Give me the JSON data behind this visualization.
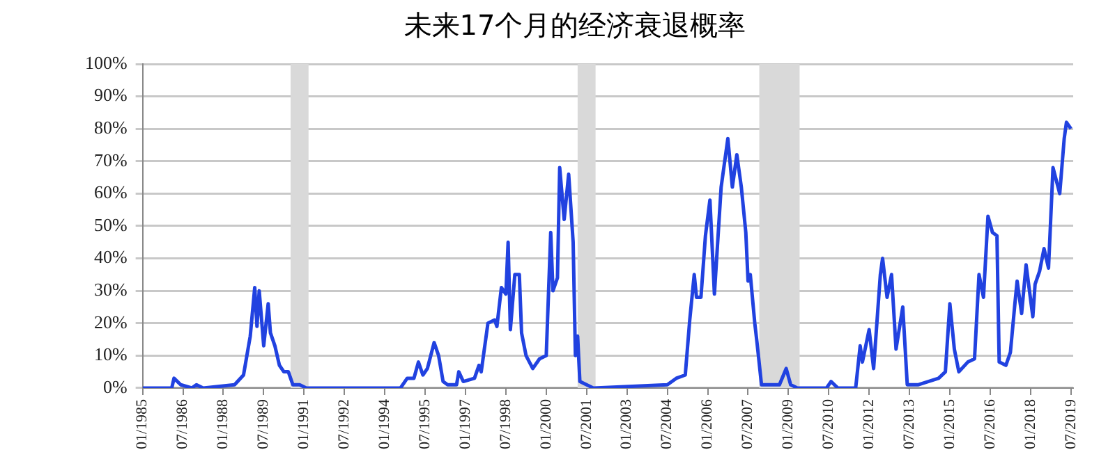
{
  "chart_data": {
    "type": "line",
    "title": "未来17个月的经济衰退概率",
    "x": [
      "1985-01",
      "1986-02",
      "1986-03",
      "1986-06",
      "1986-11",
      "1987-01",
      "1987-04",
      "1988-06",
      "1988-10",
      "1989-01",
      "1989-03",
      "1989-04",
      "1989-05",
      "1989-07",
      "1989-09",
      "1989-10",
      "1989-12",
      "1990-02",
      "1990-04",
      "1990-06",
      "1990-08",
      "1990-11",
      "1991-02",
      "1994-08",
      "1994-11",
      "1995-02",
      "1995-04",
      "1995-06",
      "1995-08",
      "1995-11",
      "1996-01",
      "1996-03",
      "1996-05",
      "1996-09",
      "1996-10",
      "1996-12",
      "1997-05",
      "1997-07",
      "1997-08",
      "1997-11",
      "1998-02",
      "1998-03",
      "1998-05",
      "1998-07",
      "1998-08",
      "1998-09",
      "1998-11",
      "1999-01",
      "1999-02",
      "1999-04",
      "1999-07",
      "1999-10",
      "2000-01",
      "2000-03",
      "2000-04",
      "2000-06",
      "2000-07",
      "2000-09",
      "2000-11",
      "2001-01",
      "2001-02",
      "2001-03",
      "2001-04",
      "2001-07",
      "2001-10",
      "2004-07",
      "2004-11",
      "2005-03",
      "2005-05",
      "2005-07",
      "2005-08",
      "2005-10",
      "2005-12",
      "2006-02",
      "2006-04",
      "2006-07",
      "2006-10",
      "2006-12",
      "2007-02",
      "2007-04",
      "2007-06",
      "2007-07",
      "2007-08",
      "2007-10",
      "2007-11",
      "2008-01",
      "2008-05",
      "2008-09",
      "2008-12",
      "2009-02",
      "2009-05",
      "2010-06",
      "2010-08",
      "2010-11",
      "2011-07",
      "2011-09",
      "2011-10",
      "2012-01",
      "2012-03",
      "2012-06",
      "2012-07",
      "2012-09",
      "2012-11",
      "2013-01",
      "2013-04",
      "2013-06",
      "2013-11",
      "2014-08",
      "2014-11",
      "2015-01",
      "2015-03",
      "2015-05",
      "2015-09",
      "2015-12",
      "2016-02",
      "2016-04",
      "2016-06",
      "2016-08",
      "2016-10",
      "2016-11",
      "2017-02",
      "2017-04",
      "2017-06",
      "2017-07",
      "2017-09",
      "2017-11",
      "2018-02",
      "2018-03",
      "2018-05",
      "2018-07",
      "2018-09",
      "2018-11",
      "2019-02",
      "2019-04",
      "2019-05",
      "2019-07"
    ],
    "series": [
      {
        "color": "#2142e0",
        "values": [
          0,
          0,
          3,
          1,
          0,
          1,
          0,
          1,
          4,
          16,
          31,
          19,
          30,
          13,
          26,
          17,
          13,
          7,
          5,
          5,
          1,
          1,
          0,
          0,
          3,
          3,
          8,
          4,
          6,
          14,
          10,
          2,
          1,
          1,
          5,
          2,
          3,
          7,
          5,
          20,
          21,
          19,
          31,
          29,
          45,
          18,
          35,
          35,
          17,
          10,
          6,
          9,
          10,
          48,
          30,
          34,
          68,
          52,
          66,
          45,
          10,
          16,
          2,
          1,
          0,
          1,
          3,
          4,
          21,
          35,
          28,
          28,
          47,
          58,
          29,
          62,
          77,
          62,
          72,
          62,
          48,
          33,
          35,
          20,
          14,
          1,
          1,
          1,
          6,
          1,
          0,
          0,
          2,
          0,
          0,
          13,
          8,
          18,
          6,
          35,
          40,
          28,
          35,
          12,
          25,
          1,
          1,
          3,
          5,
          26,
          12,
          5,
          8,
          9,
          35,
          28,
          53,
          48,
          47,
          8,
          7,
          11,
          26,
          33,
          23,
          38,
          22,
          32,
          36,
          43,
          37,
          68,
          60,
          77,
          82,
          80
        ]
      }
    ],
    "xlim": [
      "1985-01",
      "2019-08"
    ],
    "xticks": [
      {
        "value": "1985-01",
        "label": "01/1985"
      },
      {
        "value": "1986-07",
        "label": "07/1986"
      },
      {
        "value": "1988-01",
        "label": "01/1988"
      },
      {
        "value": "1989-07",
        "label": "07/1989"
      },
      {
        "value": "1991-01",
        "label": "01/1991"
      },
      {
        "value": "1992-07",
        "label": "07/1992"
      },
      {
        "value": "1994-01",
        "label": "01/1994"
      },
      {
        "value": "1995-07",
        "label": "07/1995"
      },
      {
        "value": "1997-01",
        "label": "01/1997"
      },
      {
        "value": "1998-07",
        "label": "07/1998"
      },
      {
        "value": "2000-01",
        "label": "01/2000"
      },
      {
        "value": "2001-07",
        "label": "07/2001"
      },
      {
        "value": "2003-01",
        "label": "01/2003"
      },
      {
        "value": "2004-07",
        "label": "07/2004"
      },
      {
        "value": "2006-01",
        "label": "01/2006"
      },
      {
        "value": "2007-07",
        "label": "07/2007"
      },
      {
        "value": "2009-01",
        "label": "01/2009"
      },
      {
        "value": "2010-07",
        "label": "07/2010"
      },
      {
        "value": "2012-01",
        "label": "01/2012"
      },
      {
        "value": "2013-07",
        "label": "07/2013"
      },
      {
        "value": "2015-01",
        "label": "01/2015"
      },
      {
        "value": "2016-07",
        "label": "07/2016"
      },
      {
        "value": "2018-01",
        "label": "01/2018"
      },
      {
        "value": "2019-07",
        "label": "07/2019"
      }
    ],
    "ylim": [
      0,
      100
    ],
    "yticks": [
      {
        "value": 0,
        "label": "0%"
      },
      {
        "value": 10,
        "label": "10%"
      },
      {
        "value": 20,
        "label": "20%"
      },
      {
        "value": 30,
        "label": "30%"
      },
      {
        "value": 40,
        "label": "40%"
      },
      {
        "value": 50,
        "label": "50%"
      },
      {
        "value": 60,
        "label": "60%"
      },
      {
        "value": 70,
        "label": "70%"
      },
      {
        "value": 80,
        "label": "80%"
      },
      {
        "value": 90,
        "label": "90%"
      },
      {
        "value": 100,
        "label": "100%"
      }
    ],
    "bands": [
      {
        "axis": "x",
        "from": "1990-07",
        "to": "1991-03",
        "color": "#d9d9d9"
      },
      {
        "axis": "x",
        "from": "2001-03",
        "to": "2001-11",
        "color": "#d9d9d9"
      },
      {
        "axis": "x",
        "from": "2007-12",
        "to": "2009-06",
        "color": "#d9d9d9"
      }
    ],
    "grid": "y",
    "legend": false,
    "marker": "none",
    "line_style": "solid"
  }
}
